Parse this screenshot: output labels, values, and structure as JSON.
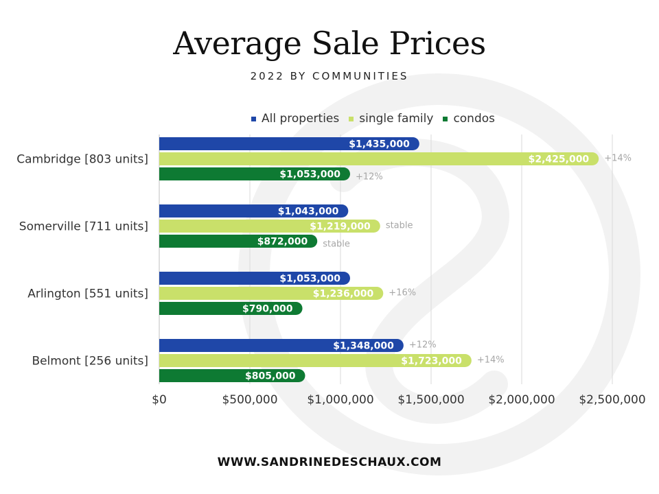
{
  "header": {
    "title": "Average Sale Prices",
    "subtitle": "2022 BY COMMUNITIES"
  },
  "footer": {
    "url": "WWW.SANDRINEDESCHAUX.COM"
  },
  "colors": {
    "all_properties": "#1f47a8",
    "single_family": "#c9e06a",
    "condos": "#0e7a33",
    "grid": "#d9d9d9",
    "change_label": "#a6a6a6"
  },
  "chart_data": {
    "type": "bar",
    "orientation": "horizontal",
    "categories": [
      "Cambridge [803 units]",
      "Somerville [711 units]",
      "Arlington [551 units]",
      "Belmont [256 units]"
    ],
    "series": [
      {
        "name": "All properties",
        "color": "#1f47a8",
        "values": [
          1435000,
          1043000,
          1053000,
          1348000
        ],
        "labels": [
          "$1,435,000",
          "$1,043,000",
          "$1,053,000",
          "$1,348,000"
        ],
        "changes": [
          "",
          "",
          "",
          "+12%"
        ]
      },
      {
        "name": "single family",
        "color": "#c9e06a",
        "values": [
          2425000,
          1219000,
          1236000,
          1723000
        ],
        "labels": [
          "$2,425,000",
          "$1,219,000",
          "$1,236,000",
          "$1,723,000"
        ],
        "changes": [
          "+14%",
          "stable",
          "+16%",
          "+14%"
        ]
      },
      {
        "name": "condos",
        "color": "#0e7a33",
        "values": [
          1053000,
          872000,
          790000,
          805000
        ],
        "labels": [
          "$1,053,000",
          "$872,000",
          "$790,000",
          "$805,000"
        ],
        "changes": [
          "+12%",
          "stable",
          "",
          ""
        ]
      }
    ],
    "xlim": [
      0,
      2500000
    ],
    "xticks": [
      0,
      500000,
      1000000,
      1500000,
      2000000,
      2500000
    ],
    "xtick_labels": [
      "$0",
      "$500,000",
      "$1,000,000",
      "$1,500,000",
      "$2,000,000",
      "$2,500,000"
    ],
    "grid": true,
    "legend_position": "top"
  }
}
